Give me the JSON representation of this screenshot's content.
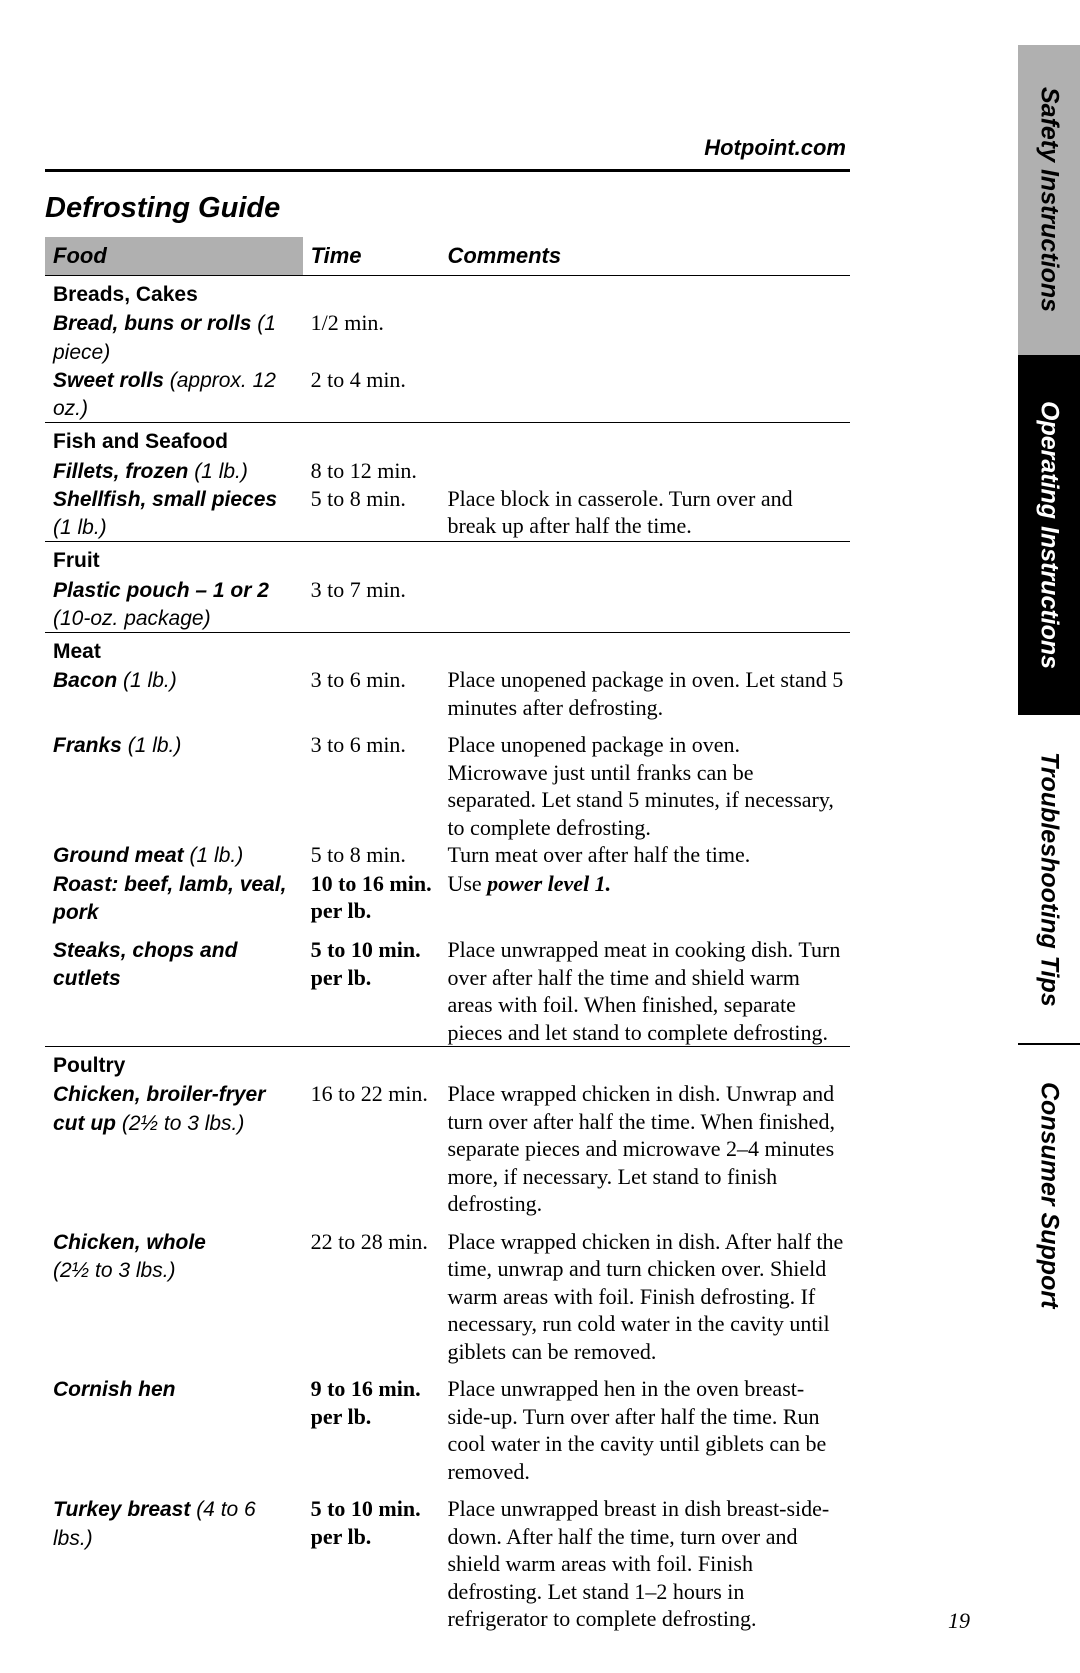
{
  "url": "Hotpoint.com",
  "title": "Defrosting Guide",
  "headers": {
    "food": "Food",
    "time": "Time",
    "comments": "Comments"
  },
  "tabs": {
    "safety": "Safety Instructions",
    "operating": "Operating Instructions",
    "troubleshooting": "Troubleshooting Tips",
    "support": "Consumer Support"
  },
  "page_num": "19",
  "cats": {
    "breads": "Breads, Cakes",
    "fish": "Fish and Seafood",
    "fruit": "Fruit",
    "meat": "Meat",
    "poultry": "Poultry"
  },
  "rows": {
    "bread": {
      "item": "Bread, buns or rolls",
      "note": " (1 piece)",
      "time": "1/2 min."
    },
    "sweet": {
      "item": "Sweet rolls",
      "note": " (approx. 12 oz.)",
      "time": "2 to 4 min."
    },
    "fillets": {
      "item": "Fillets, frozen",
      "note": " (1 lb.)",
      "time": "8 to 12 min."
    },
    "shellfish": {
      "item": "Shellfish, small pieces",
      "note": " (1 lb.)",
      "time": "5 to 8 min.",
      "comment": "Place block in casserole. Turn over and break up after half the time."
    },
    "fruit": {
      "item": "Plastic pouch – 1 or 2",
      "note": "(10-oz. package)",
      "time": "3 to 7 min."
    },
    "bacon": {
      "item": "Bacon",
      "note": " (1 lb.)",
      "time": "3 to 6 min.",
      "comment": "Place unopened package in oven. Let stand 5 minutes after defrosting."
    },
    "franks": {
      "item": "Franks",
      "note": " (1 lb.)",
      "time": "3 to 6 min.",
      "comment": "Place unopened package in oven. Microwave just until franks can be separated. Let stand 5 minutes, if necessary, to complete defrosting."
    },
    "ground": {
      "item": "Ground meat",
      "note": " (1 lb.)",
      "time": "5 to 8 min.",
      "comment": "Turn meat over after half the time."
    },
    "roast": {
      "item": "Roast: beef, lamb, veal, pork",
      "time1": "10 to 16 min.",
      "time2": "per lb.",
      "comment_pre": "Use ",
      "comment_pl": "power level 1."
    },
    "steaks": {
      "item": "Steaks, chops and cutlets",
      "time1": "5 to 10 min.",
      "time2": "per lb.",
      "comment": "Place unwrapped meat in cooking dish. Turn over after half the time and shield warm areas with foil. When finished, separate pieces and let stand to complete defrosting."
    },
    "broiler": {
      "item": "Chicken, broiler-fryer",
      "note_item": "cut up",
      "note": " (2½ to 3 lbs.)",
      "time": "16 to 22 min.",
      "comment": "Place wrapped chicken in dish. Unwrap and turn over after half the time. When finished, separate pieces and microwave 2–4 minutes more, if necessary. Let stand to finish defrosting."
    },
    "whole": {
      "item": "Chicken, whole",
      "note": "(2½ to 3 lbs.)",
      "time": "22 to 28 min.",
      "comment": "Place wrapped chicken in dish. After half the time, unwrap and turn chicken over. Shield warm areas with foil. Finish defrosting. If necessary, run cold water in the cavity until giblets can be removed."
    },
    "cornish": {
      "item": "Cornish hen",
      "time1": "9 to 16 min.",
      "time2": "per lb.",
      "comment": "Place unwrapped hen in the oven breast-side-up. Turn over after half the time. Run cool water in the cavity until giblets can be removed."
    },
    "turkey": {
      "item": "Turkey breast",
      "note": " (4 to 6 lbs.)",
      "time1": "5 to 10 min.",
      "time2": "per lb.",
      "comment": "Place unwrapped breast in dish breast-side-down. After half the time, turn over and shield warm areas with foil. Finish defrosting. Let stand 1–2 hours in refrigerator to complete defrosting."
    }
  }
}
